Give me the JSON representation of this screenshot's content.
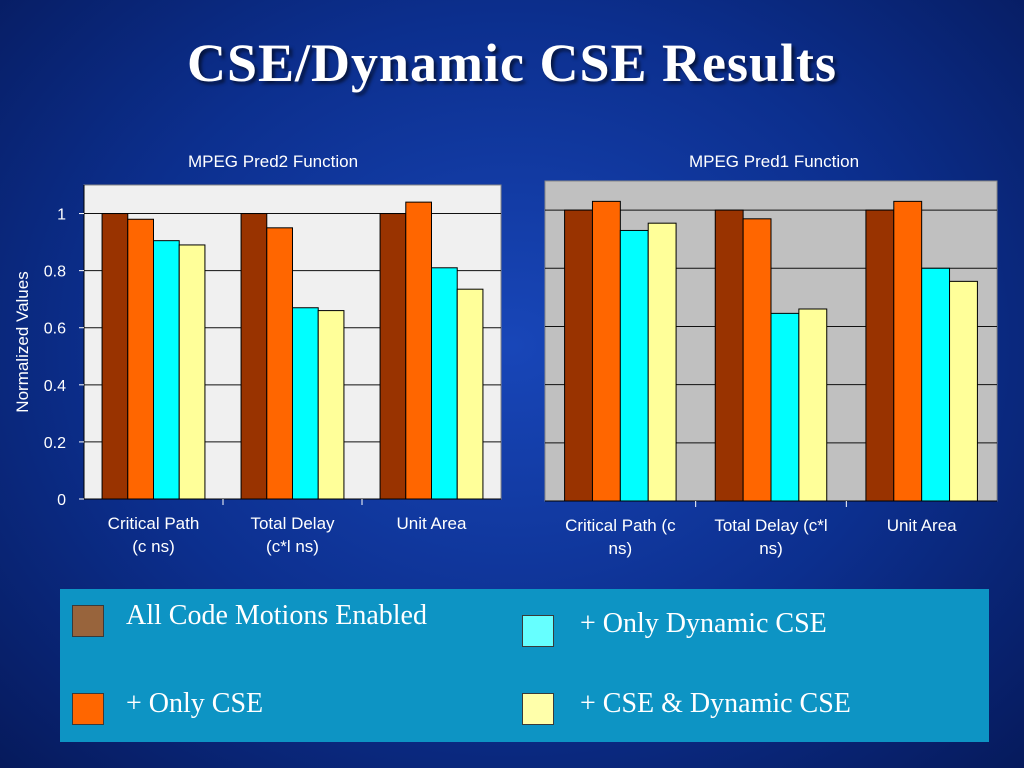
{
  "slide": {
    "title": "CSE/Dynamic CSE Results"
  },
  "colors": {
    "plot_left_bg": "#f0f0f0",
    "plot_right_bg": "#c0c0c0",
    "legend_bg": "#0d94c4"
  },
  "legend": [
    {
      "label": "All Code Motions Enabled",
      "color": "#98643c"
    },
    {
      "label": "+ Only CSE",
      "color": "#ff6600"
    },
    {
      "label": "+ Only Dynamic CSE",
      "color": "#66ffff"
    },
    {
      "label": "+ CSE & Dynamic CSE",
      "color": "#ffffaa"
    }
  ],
  "chart_data": [
    {
      "type": "bar",
      "title": "MPEG Pred2 Function",
      "ylabel": "Normalized Values",
      "xlabel": "",
      "ylim": [
        0,
        1.1
      ],
      "yticks": [
        "0",
        "0.2",
        "0.4",
        "0.6",
        "0.8",
        "1"
      ],
      "grid": true,
      "categories": [
        [
          "Critical Path",
          "(c ns)"
        ],
        [
          "Total Delay",
          "(c*l ns)"
        ],
        [
          "Unit Area"
        ]
      ],
      "series": [
        {
          "name": "All Code Motions Enabled",
          "color": "#993300",
          "values": [
            1.0,
            1.0,
            1.0
          ]
        },
        {
          "name": "+ Only CSE",
          "color": "#ff6600",
          "values": [
            0.98,
            0.95,
            1.04
          ]
        },
        {
          "name": "+ Only Dynamic CSE",
          "color": "#00ffff",
          "values": [
            0.905,
            0.67,
            0.81
          ]
        },
        {
          "name": "+ CSE & Dynamic CSE",
          "color": "#ffff99",
          "values": [
            0.89,
            0.66,
            0.735
          ]
        }
      ]
    },
    {
      "type": "bar",
      "title": "MPEG Pred1 Function",
      "ylabel": "",
      "xlabel": "",
      "ylim": [
        0,
        1.1
      ],
      "grid": true,
      "categories": [
        [
          "Critical Path (c",
          "ns)"
        ],
        [
          "Total Delay (c*l",
          "ns)"
        ],
        [
          "Unit Area"
        ]
      ],
      "series": [
        {
          "name": "All Code Motions Enabled",
          "color": "#993300",
          "values": [
            1.0,
            1.0,
            1.0
          ]
        },
        {
          "name": "+ Only CSE",
          "color": "#ff6600",
          "values": [
            1.03,
            0.97,
            1.03
          ]
        },
        {
          "name": "+ Only Dynamic CSE",
          "color": "#00ffff",
          "values": [
            0.93,
            0.645,
            0.8
          ]
        },
        {
          "name": "+ CSE & Dynamic CSE",
          "color": "#ffff99",
          "values": [
            0.955,
            0.66,
            0.755
          ]
        }
      ]
    }
  ]
}
